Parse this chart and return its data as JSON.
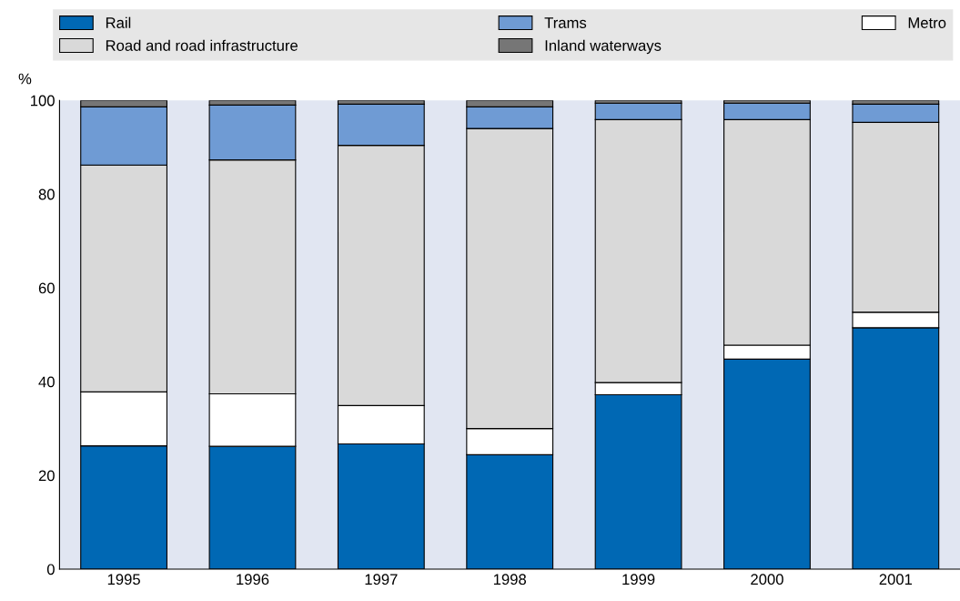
{
  "chart_data": {
    "type": "bar",
    "stacked": true,
    "ylabel": "%",
    "categories": [
      "1995",
      "1996",
      "1997",
      "1998",
      "1999",
      "2000",
      "2001"
    ],
    "series": [
      {
        "name": "Rail",
        "color": "#0068b4",
        "values": [
          26.3,
          26.2,
          26.7,
          24.4,
          37.2,
          44.8,
          51.5
        ]
      },
      {
        "name": "Metro",
        "color": "#ffffff",
        "values": [
          11.5,
          11.2,
          8.2,
          5.6,
          2.6,
          3.0,
          3.3
        ]
      },
      {
        "name": "Road and road infrastructure",
        "color": "#d9d9d9",
        "values": [
          48.4,
          49.9,
          55.5,
          64.0,
          56.1,
          48.1,
          40.5
        ]
      },
      {
        "name": "Trams",
        "color": "#6f9bd4",
        "values": [
          12.4,
          11.7,
          8.8,
          4.6,
          3.5,
          3.5,
          3.9
        ]
      },
      {
        "name": "Inland waterways",
        "color": "#767676",
        "values": [
          1.4,
          1.0,
          0.8,
          1.4,
          0.6,
          0.6,
          0.8
        ]
      }
    ],
    "ylim": [
      0,
      100
    ],
    "yticks": [
      0,
      20,
      40,
      60,
      80,
      100
    ],
    "grid": false,
    "legend": "top"
  }
}
